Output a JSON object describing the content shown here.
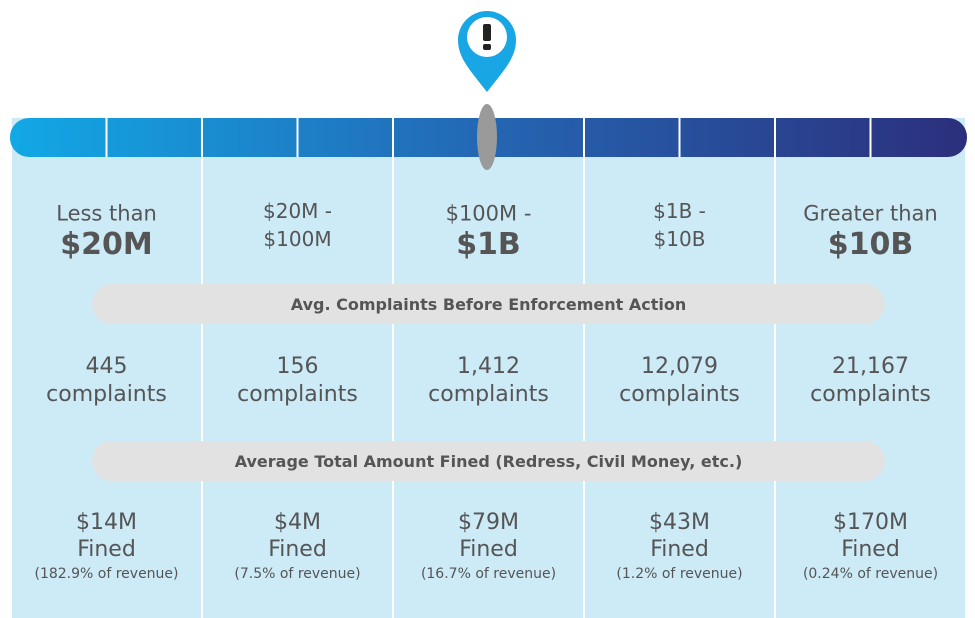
{
  "columns": [
    {
      "label_top": "Less than",
      "label_bottom": "$20M",
      "bold": true,
      "complaints": "445",
      "complaints_unit": "complaints",
      "fined": "$14M",
      "fined_unit": "Fined",
      "revenue_share": "(182.9% of revenue)"
    },
    {
      "label_top": "$20M -",
      "label_bottom": "$100M",
      "bold": false,
      "complaints": "156",
      "complaints_unit": "complaints",
      "fined": "$4M",
      "fined_unit": "Fined",
      "revenue_share": "(7.5% of revenue)"
    },
    {
      "label_top": "$100M -",
      "label_bottom": "$1B",
      "bold": true,
      "complaints": "1,412",
      "complaints_unit": "complaints",
      "fined": "$79M",
      "fined_unit": "Fined",
      "revenue_share": "(16.7% of revenue)"
    },
    {
      "label_top": "$1B -",
      "label_bottom": "$10B",
      "bold": false,
      "complaints": "12,079",
      "complaints_unit": "complaints",
      "fined": "$43M",
      "fined_unit": "Fined",
      "revenue_share": "(1.2% of revenue)"
    },
    {
      "label_top": "Greater than",
      "label_bottom": "$10B",
      "bold": true,
      "complaints": "21,167",
      "complaints_unit": "complaints",
      "fined": "$170M",
      "fined_unit": "Fined",
      "revenue_share": "(0.24% of revenue)"
    }
  ],
  "sections": [
    "Avg. Complaints Before Enforcement Action",
    "Average Total Amount Fined (Redress, Civil Money, etc.)"
  ]
}
